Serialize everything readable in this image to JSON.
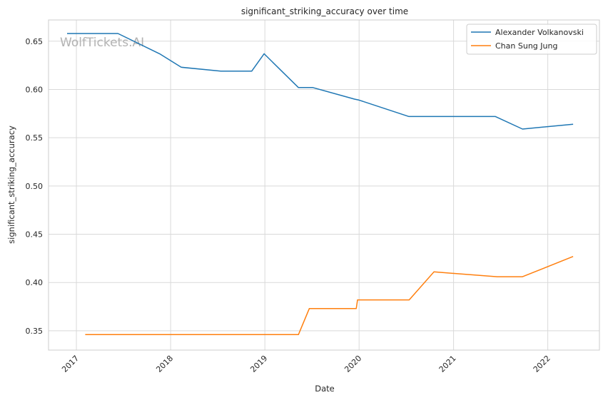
{
  "chart_data": {
    "type": "line",
    "title": "significant_striking_accuracy over time",
    "xlabel": "Date",
    "ylabel": "significant_striking_accuracy",
    "watermark": "WolfTickets.AI",
    "xlim": [
      "2016-09-15",
      "2022-07-20"
    ],
    "ylim": [
      0.33,
      0.672
    ],
    "x_ticks": [
      "2017-01-01",
      "2018-01-01",
      "2019-01-01",
      "2020-01-01",
      "2021-01-01",
      "2022-01-01"
    ],
    "x_tick_labels": [
      "2017",
      "2018",
      "2019",
      "2020",
      "2021",
      "2022"
    ],
    "y_ticks": [
      0.35,
      0.4,
      0.45,
      0.5,
      0.55,
      0.6,
      0.65
    ],
    "y_tick_labels": [
      "0.35",
      "0.40",
      "0.45",
      "0.50",
      "0.55",
      "0.60",
      "0.65"
    ],
    "grid": true,
    "legend_position": "top-right",
    "series": [
      {
        "name": "Alexander Volkanovski",
        "color": "#1f77b4",
        "x": [
          "2016-11-26",
          "2017-06-11",
          "2017-11-19",
          "2018-02-11",
          "2018-07-14",
          "2018-11-11",
          "2018-12-29",
          "2019-05-11",
          "2019-07-06",
          "2019-12-14",
          "2020-01-01",
          "2020-07-12",
          "2021-06-12",
          "2021-09-25",
          "2022-04-09"
        ],
        "y": [
          0.658,
          0.658,
          0.637,
          0.623,
          0.619,
          0.619,
          0.637,
          0.602,
          0.602,
          0.59,
          0.589,
          0.572,
          0.572,
          0.559,
          0.564
        ]
      },
      {
        "name": "Chan Sung Jung",
        "color": "#ff7f0e",
        "x": [
          "2017-02-04",
          "2018-01-01",
          "2019-05-11",
          "2019-06-22",
          "2019-12-21",
          "2019-12-26",
          "2020-07-13",
          "2020-10-17",
          "2021-06-19",
          "2021-09-25",
          "2022-04-09"
        ],
        "y": [
          0.346,
          0.346,
          0.346,
          0.373,
          0.373,
          0.382,
          0.382,
          0.411,
          0.406,
          0.406,
          0.427
        ]
      }
    ]
  }
}
